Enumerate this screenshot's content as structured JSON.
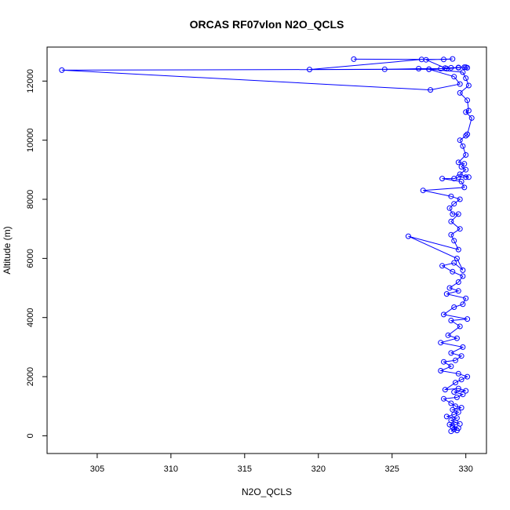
{
  "chart_data": {
    "type": "line",
    "title": "ORCAS RF07vlon N2O_QCLS",
    "xlabel": "N2O_QCLS",
    "ylabel": "Altitude (m)",
    "xlim": [
      301.6,
      331.4
    ],
    "ylim": [
      -600,
      13150
    ],
    "x_ticks": [
      305,
      310,
      315,
      320,
      325,
      330
    ],
    "y_ticks": [
      0,
      2000,
      4000,
      6000,
      8000,
      10000,
      12000
    ],
    "grid": false,
    "legend": "none",
    "series": [
      {
        "color": "#0000ff",
        "points": [
          [
            329.0,
            150
          ],
          [
            329.2,
            220
          ],
          [
            329.4,
            180
          ],
          [
            329.1,
            300
          ],
          [
            329.5,
            260
          ],
          [
            328.9,
            380
          ],
          [
            329.3,
            450
          ],
          [
            329.6,
            400
          ],
          [
            329.0,
            520
          ],
          [
            329.4,
            600
          ],
          [
            328.7,
            650
          ],
          [
            329.2,
            720
          ],
          [
            329.5,
            800
          ],
          [
            329.1,
            880
          ],
          [
            329.7,
            950
          ],
          [
            329.3,
            1000
          ],
          [
            329.0,
            1100
          ],
          [
            328.5,
            1250
          ],
          [
            329.4,
            1300
          ],
          [
            329.8,
            1400
          ],
          [
            329.2,
            1480
          ],
          [
            330.0,
            1520
          ],
          [
            329.5,
            1600
          ],
          [
            328.6,
            1560
          ],
          [
            329.3,
            1800
          ],
          [
            329.7,
            1900
          ],
          [
            330.1,
            2000
          ],
          [
            329.5,
            2100
          ],
          [
            328.3,
            2200
          ],
          [
            329.0,
            2350
          ],
          [
            328.5,
            2500
          ],
          [
            329.3,
            2550
          ],
          [
            329.7,
            2700
          ],
          [
            329.0,
            2800
          ],
          [
            329.8,
            3000
          ],
          [
            328.3,
            3150
          ],
          [
            329.4,
            3300
          ],
          [
            328.8,
            3400
          ],
          [
            329.6,
            3700
          ],
          [
            329.0,
            3900
          ],
          [
            330.1,
            3950
          ],
          [
            328.5,
            4100
          ],
          [
            329.2,
            4350
          ],
          [
            329.8,
            4450
          ],
          [
            330.0,
            4650
          ],
          [
            328.7,
            4800
          ],
          [
            329.5,
            4900
          ],
          [
            328.9,
            5000
          ],
          [
            329.5,
            5200
          ],
          [
            329.8,
            5400
          ],
          [
            329.1,
            5550
          ],
          [
            328.4,
            5750
          ],
          [
            329.2,
            5850
          ],
          [
            329.8,
            5600
          ],
          [
            329.4,
            6000
          ],
          [
            326.1,
            6750
          ],
          [
            329.5,
            6300
          ],
          [
            329.2,
            6600
          ],
          [
            329.0,
            6800
          ],
          [
            329.6,
            7000
          ],
          [
            329.0,
            7250
          ],
          [
            329.5,
            7500
          ],
          [
            329.1,
            7500
          ],
          [
            328.9,
            7700
          ],
          [
            329.2,
            7850
          ],
          [
            329.6,
            8000
          ],
          [
            329.0,
            8100
          ],
          [
            327.1,
            8300
          ],
          [
            329.9,
            8400
          ],
          [
            329.7,
            8600
          ],
          [
            328.4,
            8700
          ],
          [
            329.2,
            8700
          ],
          [
            329.5,
            8750
          ],
          [
            330.0,
            8750
          ],
          [
            330.2,
            8750
          ],
          [
            329.6,
            8850
          ],
          [
            330.0,
            9000
          ],
          [
            329.7,
            9100
          ],
          [
            329.9,
            9200
          ],
          [
            329.5,
            9250
          ],
          [
            330.0,
            9500
          ],
          [
            329.8,
            9800
          ],
          [
            329.6,
            10000
          ],
          [
            330.0,
            10150
          ],
          [
            330.1,
            10200
          ],
          [
            330.4,
            10750
          ],
          [
            330.0,
            10950
          ],
          [
            330.2,
            11000
          ],
          [
            330.1,
            11350
          ],
          [
            329.6,
            11600
          ],
          [
            330.2,
            11850
          ],
          [
            330.0,
            12100
          ],
          [
            329.8,
            12300
          ],
          [
            327.5,
            12400
          ],
          [
            302.6,
            12370
          ],
          [
            327.6,
            11700
          ],
          [
            329.6,
            11900
          ],
          [
            329.2,
            12150
          ],
          [
            327.5,
            12400
          ],
          [
            328.3,
            12420
          ],
          [
            329.0,
            12450
          ],
          [
            330.0,
            12470
          ],
          [
            330.1,
            12450
          ],
          [
            329.9,
            12470
          ],
          [
            329.5,
            12450
          ],
          [
            328.7,
            12420
          ],
          [
            326.8,
            12420
          ],
          [
            324.5,
            12400
          ],
          [
            319.4,
            12390
          ],
          [
            327.0,
            12730
          ],
          [
            322.4,
            12740
          ],
          [
            328.5,
            12730
          ],
          [
            329.1,
            12750
          ],
          [
            327.3,
            12720
          ],
          [
            328.6,
            12440
          ],
          [
            329.5,
            12460
          ]
        ]
      }
    ]
  }
}
